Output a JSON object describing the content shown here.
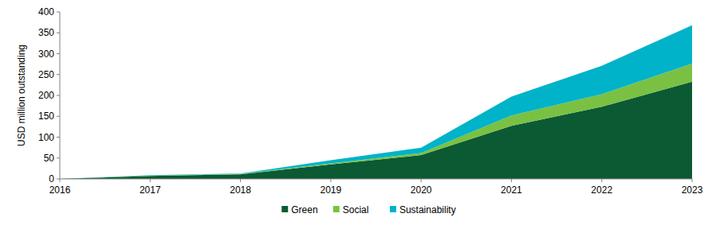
{
  "chart_data": {
    "type": "area",
    "stacked": true,
    "y_label": "USD million outstanding",
    "x": [
      2016,
      2017,
      2018,
      2019,
      2020,
      2021,
      2022,
      2023
    ],
    "xlim": [
      2016,
      2023
    ],
    "xticks": [
      2016,
      2017,
      2018,
      2019,
      2020,
      2021,
      2022,
      2023
    ],
    "ylim": [
      0,
      400
    ],
    "yticks": [
      0,
      50,
      100,
      150,
      200,
      250,
      300,
      350,
      400
    ],
    "grid": false,
    "legend": "bottom",
    "series": [
      {
        "name": "Green",
        "color": "#0b5a34",
        "values": [
          0,
          7,
          11,
          35,
          57,
          127,
          173,
          233
        ]
      },
      {
        "name": "Social",
        "color": "#7ac143",
        "values": [
          0,
          1,
          1,
          2,
          5,
          25,
          30,
          43
        ]
      },
      {
        "name": "Sustainability",
        "color": "#00b3c8",
        "values": [
          0,
          1,
          1,
          8,
          13,
          45,
          68,
          92
        ]
      }
    ]
  }
}
